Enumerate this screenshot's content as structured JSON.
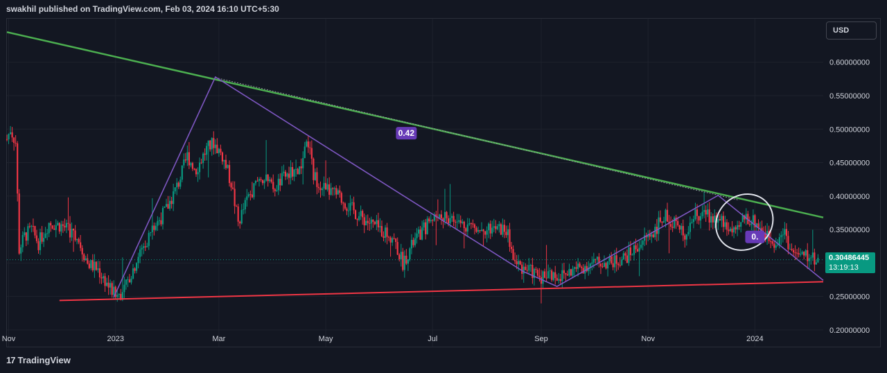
{
  "header": {
    "published_text": "swakhil published on TradingView.com, Feb 03, 2024 16:10 UTC+5:30"
  },
  "toolbar": {
    "currency_label": "USD"
  },
  "last_price": {
    "value": "0.30486445",
    "countdown": "13:19:13"
  },
  "footer": {
    "logo_text": "TradingView",
    "logo_glyph": "17"
  },
  "colors": {
    "background": "#131722",
    "grid": "#1e222d",
    "up": "#089981",
    "down": "#f23645",
    "green_trendline": "#4caf50",
    "red_trendline": "#f23645",
    "purple_lines": "#7e57c2",
    "label_bg": "#673ab7",
    "price_tag": "#089981"
  },
  "chart_data": {
    "type": "candlestick",
    "title": "",
    "y_axis": {
      "ticks": [
        "0.60000000",
        "0.55000000",
        "0.50000000",
        "0.45000000",
        "0.40000000",
        "0.35000000",
        "0.30000000",
        "0.25000000",
        "0.20000000"
      ],
      "tick_values": [
        0.6,
        0.55,
        0.5,
        0.45,
        0.4,
        0.35,
        0.3,
        0.25,
        0.2
      ],
      "range": [
        0.175,
        0.665
      ]
    },
    "x_axis": {
      "ticks": [
        "Nov",
        "2023",
        "Mar",
        "May",
        "Jul",
        "Sep",
        "Nov",
        "2024"
      ],
      "tick_dates": [
        "2022-11-01",
        "2023-01-01",
        "2023-03-01",
        "2023-05-01",
        "2023-07-01",
        "2023-09-01",
        "2023-11-01",
        "2024-01-01"
      ],
      "range": [
        "2022-10-31",
        "2024-02-09"
      ]
    },
    "grid": true,
    "last_price": 0.30486445,
    "price_path": [
      [
        "2022-10-31",
        0.485
      ],
      [
        "2022-11-02",
        0.5
      ],
      [
        "2022-11-05",
        0.48
      ],
      [
        "2022-11-07",
        0.32
      ],
      [
        "2022-11-10",
        0.34
      ],
      [
        "2022-11-14",
        0.35
      ],
      [
        "2022-11-18",
        0.33
      ],
      [
        "2022-11-24",
        0.36
      ],
      [
        "2022-12-02",
        0.355
      ],
      [
        "2022-12-10",
        0.34
      ],
      [
        "2022-12-16",
        0.3
      ],
      [
        "2022-12-22",
        0.29
      ],
      [
        "2022-12-27",
        0.27
      ],
      [
        "2023-01-01",
        0.25
      ],
      [
        "2023-01-06",
        0.26
      ],
      [
        "2023-01-14",
        0.31
      ],
      [
        "2023-01-22",
        0.35
      ],
      [
        "2023-01-30",
        0.38
      ],
      [
        "2023-02-06",
        0.42
      ],
      [
        "2023-02-11",
        0.46
      ],
      [
        "2023-02-16",
        0.44
      ],
      [
        "2023-02-22",
        0.47
      ],
      [
        "2023-02-26",
        0.48
      ],
      [
        "2023-03-03",
        0.46
      ],
      [
        "2023-03-08",
        0.42
      ],
      [
        "2023-03-12",
        0.36
      ],
      [
        "2023-03-18",
        0.4
      ],
      [
        "2023-03-25",
        0.43
      ],
      [
        "2023-04-01",
        0.41
      ],
      [
        "2023-04-08",
        0.43
      ],
      [
        "2023-04-16",
        0.44
      ],
      [
        "2023-04-21",
        0.48
      ],
      [
        "2023-04-24",
        0.43
      ],
      [
        "2023-05-01",
        0.41
      ],
      [
        "2023-05-08",
        0.4
      ],
      [
        "2023-05-20",
        0.37
      ],
      [
        "2023-06-01",
        0.35
      ],
      [
        "2023-06-08",
        0.34
      ],
      [
        "2023-06-14",
        0.3
      ],
      [
        "2023-06-20",
        0.33
      ],
      [
        "2023-06-26",
        0.35
      ],
      [
        "2023-07-01",
        0.37
      ],
      [
        "2023-07-08",
        0.37
      ],
      [
        "2023-07-15",
        0.36
      ],
      [
        "2023-07-25",
        0.355
      ],
      [
        "2023-08-05",
        0.35
      ],
      [
        "2023-08-12",
        0.35
      ],
      [
        "2023-08-17",
        0.3
      ],
      [
        "2023-08-24",
        0.29
      ],
      [
        "2023-09-01",
        0.28
      ],
      [
        "2023-09-05",
        0.285
      ],
      [
        "2023-09-12",
        0.28
      ],
      [
        "2023-09-20",
        0.29
      ],
      [
        "2023-10-01",
        0.3
      ],
      [
        "2023-10-10",
        0.3
      ],
      [
        "2023-10-20",
        0.31
      ],
      [
        "2023-10-28",
        0.33
      ],
      [
        "2023-11-05",
        0.35
      ],
      [
        "2023-11-10",
        0.37
      ],
      [
        "2023-11-17",
        0.36
      ],
      [
        "2023-11-21",
        0.34
      ],
      [
        "2023-11-27",
        0.37
      ],
      [
        "2023-12-06",
        0.37
      ],
      [
        "2023-12-14",
        0.36
      ],
      [
        "2023-12-21",
        0.34
      ],
      [
        "2023-12-26",
        0.37
      ],
      [
        "2024-01-02",
        0.36
      ],
      [
        "2024-01-08",
        0.34
      ],
      [
        "2024-01-12",
        0.33
      ],
      [
        "2024-01-18",
        0.35
      ],
      [
        "2024-01-21",
        0.32
      ],
      [
        "2024-01-26",
        0.31
      ],
      [
        "2024-02-02",
        0.31
      ],
      [
        "2024-02-06",
        0.305
      ]
    ],
    "annotations": {
      "green_trendline": {
        "from": [
          "2022-10-31",
          0.645
        ],
        "to": [
          "2024-02-09",
          0.368
        ]
      },
      "red_trendline": {
        "from": [
          "2022-11-30",
          0.244
        ],
        "to": [
          "2024-02-09",
          0.272
        ]
      },
      "purple_zigzag": [
        [
          "2022-12-31",
          0.249
        ],
        [
          "2023-02-27",
          0.578
        ],
        [
          "2023-08-22",
          0.287
        ],
        [
          "2023-09-10",
          0.265
        ],
        [
          "2023-12-11",
          0.401
        ],
        [
          "2024-02-09",
          0.274
        ]
      ],
      "dotted_line": {
        "from": [
          "2023-02-27",
          0.578
        ],
        "to": [
          "2023-12-23",
          0.395
        ]
      },
      "labels": [
        {
          "text": "0.42",
          "at": [
            "2023-06-16",
            0.494
          ]
        },
        {
          "text": "0.",
          "at": [
            "2024-01-01",
            0.339
          ],
          "partially_covered": true
        }
      ],
      "ellipse": {
        "center": [
          "2023-12-26",
          0.361
        ],
        "rx_days": 17,
        "ry_price": 0.04,
        "tilt_deg": -40
      }
    }
  }
}
